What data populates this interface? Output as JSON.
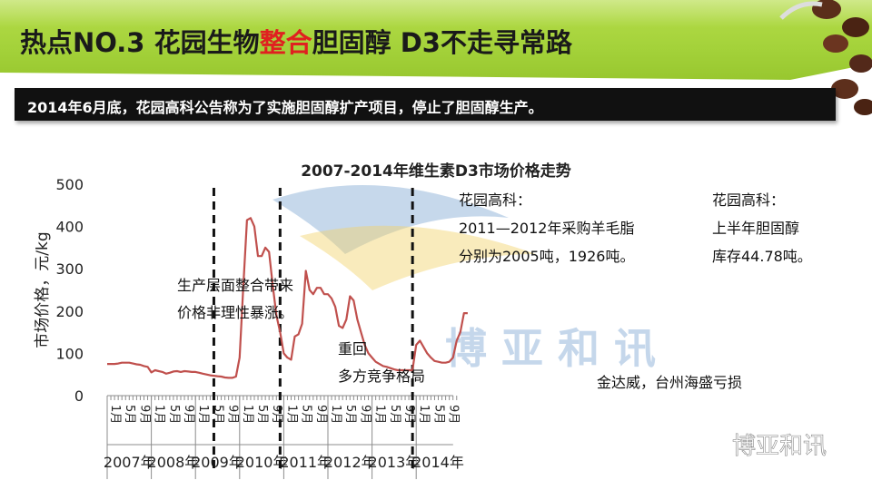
{
  "header": {
    "title_part1": "热点NO.3 花园生物",
    "title_highlight": "整合",
    "title_part2": "胆固醇 D3不走寻常路",
    "subtitle": "2014年6月底，花园高科公告称为了实施胆固醇扩产项目，停止了胆固醇生产。"
  },
  "watermark": {
    "chinese": "博 亚 和 讯",
    "logo_text": "博亚和讯"
  },
  "colors": {
    "band": "#a4d23a",
    "line": "#c0504d",
    "highlight": "#e02020",
    "watermark_blue": "#5b8fc7",
    "watermark_yellow": "#f2d26a"
  },
  "chart_data": {
    "type": "line",
    "title": "2007-2014年维生素D3市场价格走势",
    "ylabel": "市场价格，元/kg",
    "ylim": [
      0,
      500
    ],
    "yticks": [
      0,
      100,
      200,
      300,
      400,
      500
    ],
    "month_labels": [
      "1月",
      "5月",
      "9月"
    ],
    "years": [
      "2007年",
      "2008年",
      "2009年",
      "2010年",
      "2011年",
      "2012年",
      "2013年",
      "2014年"
    ],
    "x_start": "2007-01",
    "values": [
      75,
      75,
      75,
      76,
      78,
      78,
      78,
      76,
      74,
      73,
      70,
      68,
      55,
      60,
      58,
      56,
      52,
      54,
      57,
      58,
      56,
      58,
      57,
      56,
      56,
      54,
      52,
      50,
      48,
      47,
      46,
      45,
      43,
      42,
      42,
      45,
      90,
      260,
      415,
      420,
      400,
      330,
      330,
      350,
      340,
      260,
      190,
      150,
      100,
      90,
      85,
      140,
      145,
      170,
      295,
      250,
      240,
      255,
      255,
      240,
      240,
      230,
      210,
      165,
      160,
      180,
      235,
      225,
      180,
      150,
      120,
      100,
      90,
      80,
      75,
      70,
      68,
      65,
      62,
      60,
      60,
      60,
      60,
      60,
      120,
      130,
      115,
      100,
      90,
      82,
      80,
      78,
      78,
      80,
      90,
      130,
      150,
      195,
      195
    ],
    "dividers": [
      "2009-06",
      "2010-12",
      "2013-12"
    ],
    "annotations": [
      {
        "lines": [
          "生产层面整合带来",
          "价格非理性暴涨。"
        ]
      },
      {
        "lines": [
          "重回",
          "多方竞争格局"
        ]
      },
      {
        "lines": [
          "花园高科：",
          "2011—2012年采购羊毛脂",
          "分别为2005吨，1926吨。"
        ]
      },
      {
        "lines": [
          "金达威，台州海盛亏损"
        ]
      },
      {
        "lines": [
          "花园高科：",
          "上半年胆固醇",
          "库存44.78吨。"
        ]
      }
    ]
  }
}
